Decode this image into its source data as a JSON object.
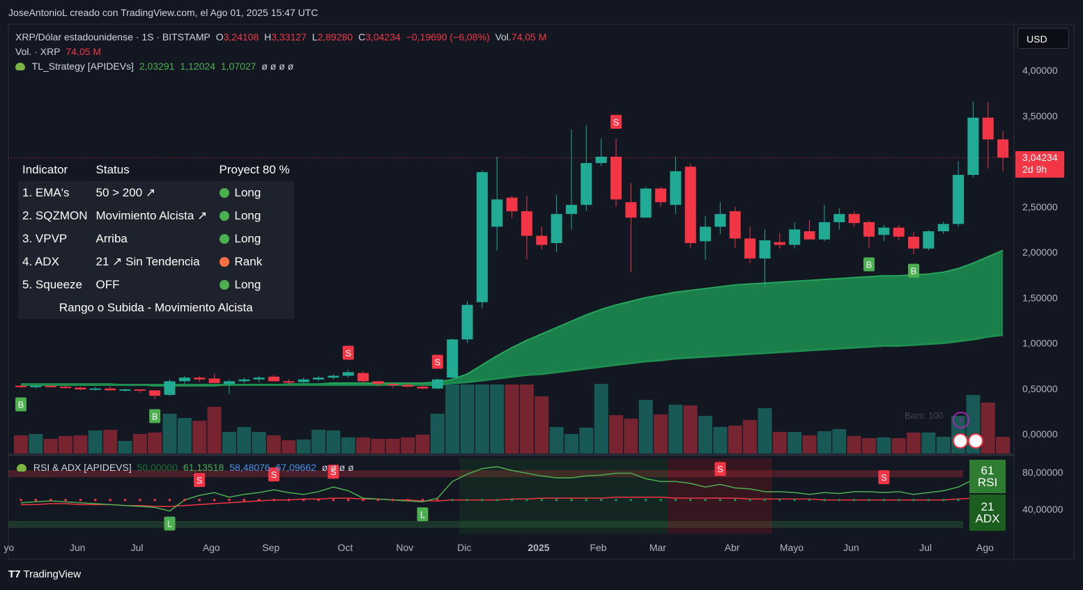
{
  "header": {
    "watermark": "JoseAntonioL creado con TradingView.com, el Ago 01, 2025 15:47 UTC"
  },
  "legend": {
    "symbol": "XRP/Dólar estadounidense · 1S · BITSTAMP",
    "o_label": "O",
    "o": "3,24108",
    "h_label": "H",
    "h": "3,33127",
    "l_label": "L",
    "l": "2,89280",
    "c_label": "C",
    "c": "3,04234",
    "change": "−0,19690 (−6,08%)",
    "vol_label": "Vol.",
    "vol": "74,05 M",
    "vol2_label": "Vol. · XRP",
    "vol2": "74,05 M",
    "strategy_name": "TL_Strategy [APIDEVs]",
    "strategy_v1": "2,03291",
    "strategy_v2": "1,12024",
    "strategy_v3": "1,07027",
    "strategy_empty": "ø ø ø ø"
  },
  "currency_button": "USD",
  "price_tag": {
    "price": "3,04234",
    "countdown": "2d 9h"
  },
  "indicator_table": {
    "headers": [
      "Indicator",
      "Status",
      "Proyect 80 %"
    ],
    "rows": [
      {
        "name": "1. EMA's",
        "status": "50 > 200 ↗",
        "signal": "Long",
        "dot_color": "#4caf50"
      },
      {
        "name": "2. SQZMON",
        "status": "Movimiento Alcista ↗",
        "signal": "Long",
        "dot_color": "#4caf50"
      },
      {
        "name": "3. VPVP",
        "status": "Arriba",
        "signal": "Long",
        "dot_color": "#4caf50"
      },
      {
        "name": "4. ADX",
        "status": "21 ↗ Sin Tendencia",
        "signal": "Rank",
        "dot_color": "#ff7043"
      },
      {
        "name": "5. Squeeze",
        "status": "OFF",
        "signal": "Long",
        "dot_color": "#4caf50"
      }
    ],
    "footer": "Rango o Subida - Movimiento Alcista"
  },
  "rsi_legend": {
    "name": "RSI & ADX [APIDEVS]",
    "v1": "50,00000",
    "v2": "61,13518",
    "v3": "58,48076",
    "v4": "67,09662",
    "empty": "ø ø ø ø"
  },
  "rsi_badge": {
    "value": "61",
    "label": "RSI"
  },
  "adx_badge": {
    "value": "21",
    "label": "ADX"
  },
  "bars_label": "Bars: 100",
  "footer": {
    "brand": "TradingView"
  },
  "colors": {
    "up": "#22ab94",
    "down": "#f23645",
    "background": "#131722",
    "ema_fill": "#1fa35a"
  },
  "chart_data": {
    "type": "candlestick",
    "interval": "1S",
    "y_axis_labels": [
      "4,00000",
      "3,50000",
      "2,50000",
      "2,00000",
      "1,50000",
      "1,00000",
      "0,50000",
      "0,00000"
    ],
    "y_axis_values": [
      4.0,
      3.5,
      2.5,
      2.0,
      1.5,
      1.0,
      0.5,
      0.0
    ],
    "ylim": [
      -0.1,
      4.3
    ],
    "x_axis_labels": [
      "yo",
      "Jun",
      "Jul",
      "Ago",
      "Sep",
      "Oct",
      "Nov",
      "Dic",
      "2025",
      "Feb",
      "Mar",
      "Abr",
      "Mayo",
      "Jun",
      "Jul",
      "Ago"
    ],
    "candles": [
      [
        0.53,
        0.54,
        0.51,
        0.52
      ],
      [
        0.52,
        0.53,
        0.5,
        0.53
      ],
      [
        0.53,
        0.54,
        0.51,
        0.52
      ],
      [
        0.52,
        0.53,
        0.5,
        0.51
      ],
      [
        0.51,
        0.52,
        0.48,
        0.49
      ],
      [
        0.49,
        0.52,
        0.48,
        0.5
      ],
      [
        0.5,
        0.52,
        0.48,
        0.48
      ],
      [
        0.48,
        0.5,
        0.47,
        0.49
      ],
      [
        0.49,
        0.49,
        0.45,
        0.48
      ],
      [
        0.48,
        0.48,
        0.38,
        0.42
      ],
      [
        0.43,
        0.6,
        0.42,
        0.58
      ],
      [
        0.58,
        0.64,
        0.55,
        0.62
      ],
      [
        0.62,
        0.64,
        0.57,
        0.6
      ],
      [
        0.61,
        0.66,
        0.56,
        0.56
      ],
      [
        0.55,
        0.6,
        0.44,
        0.58
      ],
      [
        0.58,
        0.62,
        0.56,
        0.6
      ],
      [
        0.6,
        0.64,
        0.57,
        0.62
      ],
      [
        0.63,
        0.65,
        0.58,
        0.58
      ],
      [
        0.58,
        0.6,
        0.54,
        0.57
      ],
      [
        0.57,
        0.62,
        0.56,
        0.6
      ],
      [
        0.6,
        0.64,
        0.58,
        0.62
      ],
      [
        0.62,
        0.66,
        0.6,
        0.64
      ],
      [
        0.64,
        0.71,
        0.62,
        0.68
      ],
      [
        0.67,
        0.69,
        0.55,
        0.58
      ],
      [
        0.58,
        0.58,
        0.52,
        0.55
      ],
      [
        0.55,
        0.56,
        0.51,
        0.54
      ],
      [
        0.54,
        0.56,
        0.51,
        0.52
      ],
      [
        0.52,
        0.54,
        0.49,
        0.5
      ],
      [
        0.5,
        0.61,
        0.49,
        0.6
      ],
      [
        0.62,
        1.05,
        0.6,
        1.04
      ],
      [
        1.04,
        1.46,
        1.0,
        1.42
      ],
      [
        1.45,
        2.9,
        1.38,
        2.88
      ],
      [
        2.28,
        3.05,
        2.02,
        2.58
      ],
      [
        2.6,
        2.62,
        2.38,
        2.45
      ],
      [
        2.45,
        2.62,
        1.92,
        2.18
      ],
      [
        2.18,
        2.28,
        2.03,
        2.08
      ],
      [
        2.1,
        2.63,
        2.0,
        2.42
      ],
      [
        2.42,
        3.35,
        2.25,
        2.52
      ],
      [
        2.52,
        3.4,
        2.45,
        2.98
      ],
      [
        2.98,
        3.25,
        2.95,
        3.05
      ],
      [
        3.05,
        3.25,
        2.5,
        2.58
      ],
      [
        2.55,
        2.76,
        1.78,
        2.38
      ],
      [
        2.38,
        2.72,
        2.38,
        2.7
      ],
      [
        2.7,
        2.72,
        2.5,
        2.55
      ],
      [
        2.52,
        3.05,
        2.42,
        2.89
      ],
      [
        2.94,
        2.98,
        2.05,
        2.1
      ],
      [
        2.12,
        2.4,
        1.92,
        2.28
      ],
      [
        2.28,
        2.55,
        2.2,
        2.42
      ],
      [
        2.45,
        2.5,
        2.05,
        2.15
      ],
      [
        2.15,
        2.28,
        1.88,
        1.93
      ],
      [
        1.93,
        2.25,
        1.62,
        2.13
      ],
      [
        2.11,
        2.21,
        2.04,
        2.08
      ],
      [
        2.08,
        2.33,
        2.04,
        2.25
      ],
      [
        2.23,
        2.35,
        2.15,
        2.14
      ],
      [
        2.14,
        2.52,
        2.12,
        2.33
      ],
      [
        2.33,
        2.48,
        2.25,
        2.42
      ],
      [
        2.42,
        2.45,
        2.28,
        2.32
      ],
      [
        2.33,
        2.35,
        2.05,
        2.17
      ],
      [
        2.19,
        2.3,
        2.12,
        2.27
      ],
      [
        2.27,
        2.3,
        2.13,
        2.17
      ],
      [
        2.17,
        2.22,
        1.98,
        2.04
      ],
      [
        2.04,
        2.24,
        2.02,
        2.23
      ],
      [
        2.23,
        2.34,
        2.2,
        2.31
      ],
      [
        2.31,
        3.0,
        2.28,
        2.85
      ],
      [
        2.85,
        3.66,
        2.82,
        3.48
      ],
      [
        3.48,
        3.65,
        2.92,
        3.24
      ],
      [
        3.24,
        3.33,
        2.89,
        3.04
      ]
    ],
    "signal_markers": [
      {
        "type": "B",
        "candle": 0,
        "price": "low"
      },
      {
        "type": "B",
        "candle": 9,
        "price": "low"
      },
      {
        "type": "S",
        "candle": 22,
        "price": "high"
      },
      {
        "type": "S",
        "candle": 28,
        "price": "high"
      },
      {
        "type": "S",
        "candle": 40,
        "price": "high"
      },
      {
        "type": "B",
        "candle": 57,
        "price": "low"
      },
      {
        "type": "B",
        "candle": 60,
        "price": "low"
      }
    ],
    "ema_fast": [
      0.55,
      0.55,
      0.55,
      0.55,
      0.55,
      0.55,
      0.55,
      0.54,
      0.54,
      0.53,
      0.53,
      0.53,
      0.53,
      0.53,
      0.54,
      0.54,
      0.54,
      0.54,
      0.55,
      0.55,
      0.55,
      0.56,
      0.56,
      0.56,
      0.56,
      0.56,
      0.56,
      0.56,
      0.57,
      0.6,
      0.66,
      0.76,
      0.86,
      0.95,
      1.03,
      1.1,
      1.17,
      1.24,
      1.31,
      1.37,
      1.42,
      1.46,
      1.5,
      1.53,
      1.56,
      1.58,
      1.6,
      1.62,
      1.64,
      1.65,
      1.66,
      1.67,
      1.68,
      1.69,
      1.7,
      1.71,
      1.72,
      1.73,
      1.74,
      1.74,
      1.75,
      1.76,
      1.78,
      1.82,
      1.88,
      1.95,
      2.02
    ],
    "ema_slow": [
      0.54,
      0.54,
      0.54,
      0.54,
      0.54,
      0.54,
      0.54,
      0.54,
      0.54,
      0.54,
      0.54,
      0.54,
      0.54,
      0.54,
      0.54,
      0.54,
      0.54,
      0.54,
      0.54,
      0.54,
      0.54,
      0.54,
      0.54,
      0.54,
      0.54,
      0.54,
      0.54,
      0.54,
      0.54,
      0.56,
      0.57,
      0.59,
      0.61,
      0.63,
      0.65,
      0.66,
      0.68,
      0.7,
      0.72,
      0.74,
      0.76,
      0.78,
      0.8,
      0.81,
      0.83,
      0.84,
      0.85,
      0.86,
      0.87,
      0.88,
      0.89,
      0.9,
      0.91,
      0.92,
      0.93,
      0.94,
      0.95,
      0.96,
      0.97,
      0.97,
      0.98,
      0.99,
      1.0,
      1.02,
      1.04,
      1.07,
      1.09
    ],
    "volume": [
      26,
      28,
      21,
      25,
      26,
      33,
      34,
      18,
      28,
      30,
      57,
      51,
      47,
      67,
      31,
      38,
      31,
      26,
      19,
      20,
      34,
      33,
      23,
      23,
      21,
      21,
      23,
      27,
      57,
      99,
      99,
      99,
      99,
      99,
      99,
      82,
      38,
      28,
      37,
      100,
      55,
      50,
      77,
      56,
      70,
      69,
      54,
      38,
      40,
      48,
      65,
      31,
      31,
      26,
      32,
      35,
      25,
      22,
      23,
      22,
      30,
      30,
      24,
      54,
      84,
      73,
      24
    ],
    "rsi": {
      "ylim": [
        10,
        100
      ],
      "y_axis_labels": [
        "80,00000",
        "40,00000"
      ],
      "y_axis_values": [
        80,
        40
      ],
      "rsi_line": [
        47,
        48,
        49,
        48,
        47,
        46,
        45,
        44,
        43,
        42,
        38,
        50,
        55,
        58,
        53,
        56,
        58,
        61,
        58,
        56,
        59,
        64,
        60,
        52,
        51,
        50,
        49,
        48,
        52,
        70,
        78,
        84,
        86,
        82,
        79,
        76,
        74,
        74,
        76,
        77,
        79,
        79,
        73,
        70,
        70,
        68,
        64,
        67,
        63,
        62,
        59,
        59,
        58,
        56,
        58,
        57,
        59,
        59,
        58,
        59,
        56,
        58,
        60,
        64,
        72,
        66,
        61
      ],
      "signal_line": [
        45,
        45,
        46,
        46,
        45,
        45,
        45,
        44,
        44,
        43,
        43,
        44,
        45,
        46,
        47,
        48,
        49,
        50,
        50,
        51,
        51,
        52,
        52,
        51,
        51,
        50,
        50,
        49,
        49,
        50,
        50,
        50,
        50,
        51,
        51,
        52,
        52,
        52,
        52,
        52,
        53,
        53,
        53,
        53,
        52,
        52,
        52,
        52,
        52,
        51,
        51,
        51,
        51,
        51,
        50,
        50,
        50,
        50,
        50,
        50,
        50,
        50,
        50,
        51,
        52,
        53,
        54
      ],
      "markers": [
        {
          "type": "L",
          "candle": 10
        },
        {
          "type": "S",
          "candle": 12
        },
        {
          "type": "S",
          "candle": 17
        },
        {
          "type": "S",
          "candle": 21
        },
        {
          "type": "L",
          "candle": 27
        },
        {
          "type": "S",
          "candle": 47
        },
        {
          "type": "S",
          "candle": 58
        }
      ]
    }
  }
}
